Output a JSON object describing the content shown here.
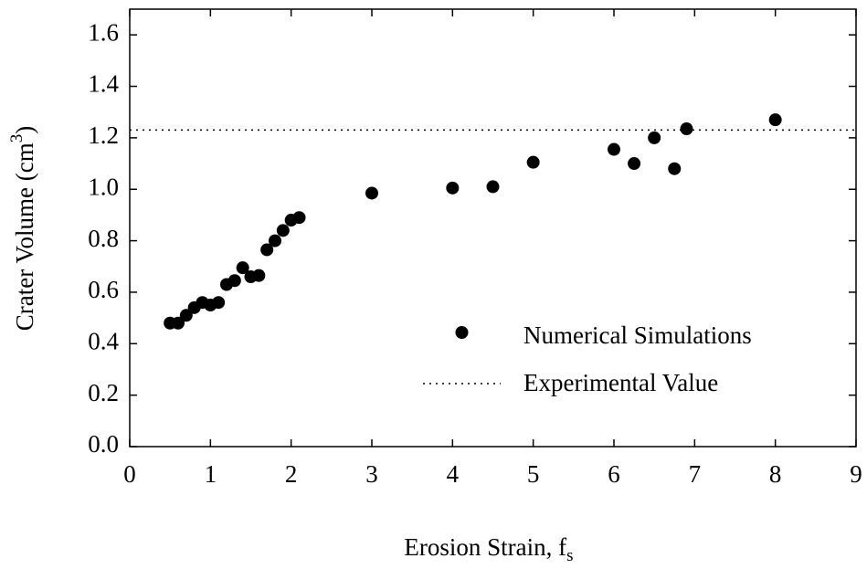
{
  "chart_data": {
    "type": "scatter",
    "x_label": {
      "text": "Erosion Strain, f",
      "sub": "s"
    },
    "y_label": {
      "text": "Crater Volume (cm",
      "sup": "3",
      "end": ")"
    },
    "series": [
      {
        "name": "Numerical Simulations",
        "color": "#000000",
        "x": [
          0.5,
          0.6,
          0.7,
          0.8,
          0.9,
          1.0,
          1.1,
          1.2,
          1.3,
          1.4,
          1.5,
          1.6,
          1.7,
          1.8,
          1.9,
          2.0,
          2.1,
          3.0,
          4.0,
          4.5,
          5.0,
          6.0,
          6.25,
          6.5,
          6.75,
          6.9,
          8.0
        ],
        "values": [
          0.48,
          0.48,
          0.51,
          0.54,
          0.56,
          0.55,
          0.56,
          0.63,
          0.645,
          0.695,
          0.66,
          0.665,
          0.765,
          0.8,
          0.84,
          0.88,
          0.89,
          0.985,
          1.005,
          1.01,
          1.105,
          1.155,
          1.1,
          1.2,
          1.08,
          1.235,
          1.27
        ]
      }
    ],
    "reference_lines": [
      {
        "name": "Experimental Value",
        "value": 1.23,
        "style": "dotted"
      }
    ],
    "xlim": [
      0,
      9
    ],
    "xticks": [
      0,
      1,
      2,
      3,
      4,
      5,
      6,
      7,
      8,
      9
    ],
    "ylim": [
      0,
      1.7
    ],
    "yticks": [
      {
        "value": 0,
        "label": "0.0"
      },
      0.2,
      0.4,
      0.6,
      0.8,
      {
        "value": 1,
        "label": "1.0"
      },
      1.2,
      1.4,
      1.6
    ],
    "legend": "lower right"
  }
}
